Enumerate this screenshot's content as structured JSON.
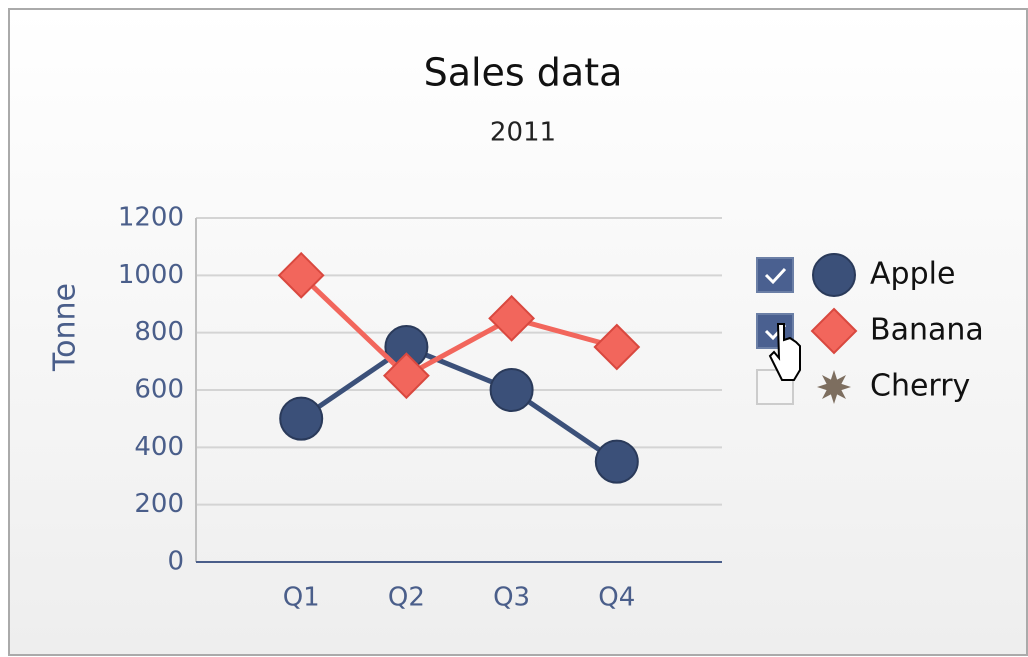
{
  "chart_data": {
    "type": "line",
    "title": "Sales data",
    "subtitle": "2011",
    "y_label": "Tonne",
    "categories": [
      "Q1",
      "Q2",
      "Q3",
      "Q4"
    ],
    "series": [
      {
        "name": "Apple",
        "color": "#3b5079",
        "marker": "circle",
        "visible": true,
        "values": [
          500,
          750,
          600,
          350
        ]
      },
      {
        "name": "Banana",
        "color": "#f2665c",
        "marker": "diamond",
        "visible": true,
        "values": [
          1000,
          650,
          850,
          750
        ]
      },
      {
        "name": "Cherry",
        "color": "#7d6e5f",
        "marker": "star",
        "visible": false
      }
    ],
    "ylim": [
      0,
      1200
    ],
    "yticks": [
      0,
      200,
      400,
      600,
      800,
      1000,
      1200
    ],
    "grid": true,
    "legend": "right"
  }
}
